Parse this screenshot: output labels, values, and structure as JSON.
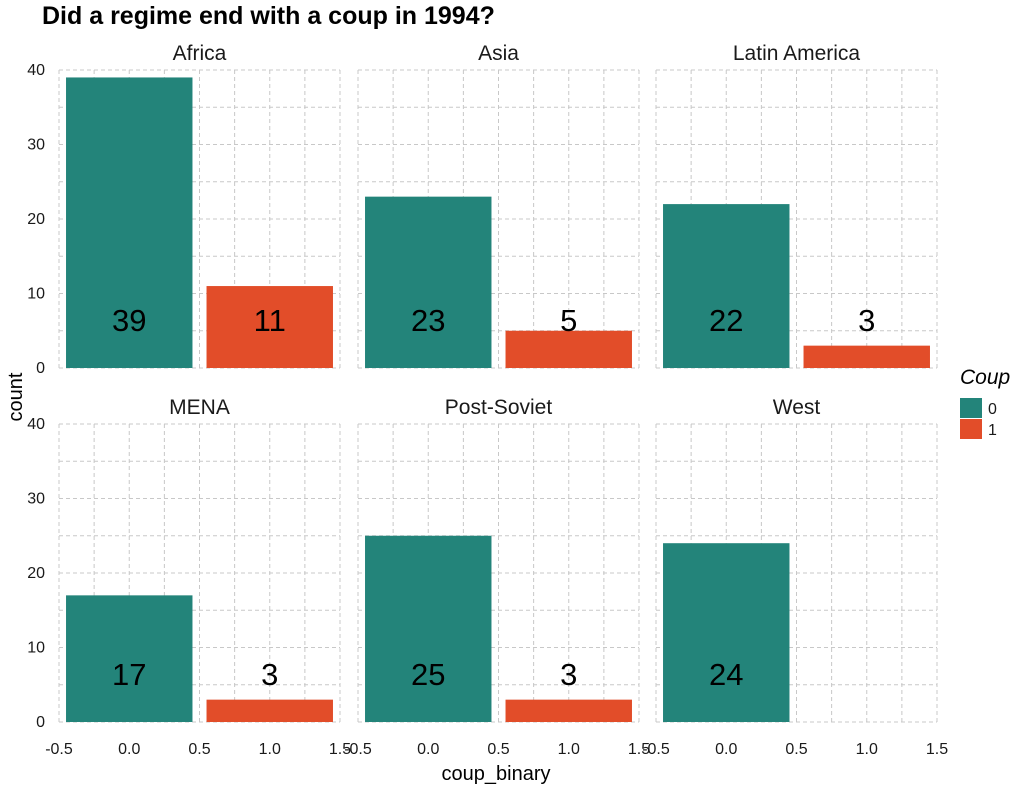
{
  "chart_data": {
    "type": "bar",
    "title": "Did a regime end with a coup in 1994?",
    "xlabel": "coup_binary",
    "ylabel": "count",
    "xlim": [
      -0.5,
      1.5
    ],
    "ylim": [
      0,
      40
    ],
    "x_ticks": [
      "-0.5",
      "0.0",
      "0.5",
      "1.0",
      "1.5"
    ],
    "y_ticks": [
      "0",
      "10",
      "20",
      "30",
      "40"
    ],
    "grid": true,
    "legend": {
      "title": "Coup",
      "position": "right",
      "entries": [
        {
          "label": "0",
          "color": "#23847A"
        },
        {
          "label": "1",
          "color": "#E24D29"
        }
      ]
    },
    "panels": [
      {
        "name": "Africa",
        "bars": [
          {
            "x": 0,
            "value": 39,
            "label": "39",
            "group": "0"
          },
          {
            "x": 1,
            "value": 11,
            "label": "11",
            "group": "1"
          }
        ]
      },
      {
        "name": "Asia",
        "bars": [
          {
            "x": 0,
            "value": 23,
            "label": "23",
            "group": "0"
          },
          {
            "x": 1,
            "value": 5,
            "label": "5",
            "group": "1"
          }
        ]
      },
      {
        "name": "Latin America",
        "bars": [
          {
            "x": 0,
            "value": 22,
            "label": "22",
            "group": "0"
          },
          {
            "x": 1,
            "value": 3,
            "label": "3",
            "group": "1"
          }
        ]
      },
      {
        "name": "MENA",
        "bars": [
          {
            "x": 0,
            "value": 17,
            "label": "17",
            "group": "0"
          },
          {
            "x": 1,
            "value": 3,
            "label": "3",
            "group": "1"
          }
        ]
      },
      {
        "name": "Post-Soviet",
        "bars": [
          {
            "x": 0,
            "value": 25,
            "label": "25",
            "group": "0"
          },
          {
            "x": 1,
            "value": 3,
            "label": "3",
            "group": "1"
          }
        ]
      },
      {
        "name": "West",
        "bars": [
          {
            "x": 0,
            "value": 24,
            "label": "24",
            "group": "0"
          }
        ]
      }
    ]
  }
}
